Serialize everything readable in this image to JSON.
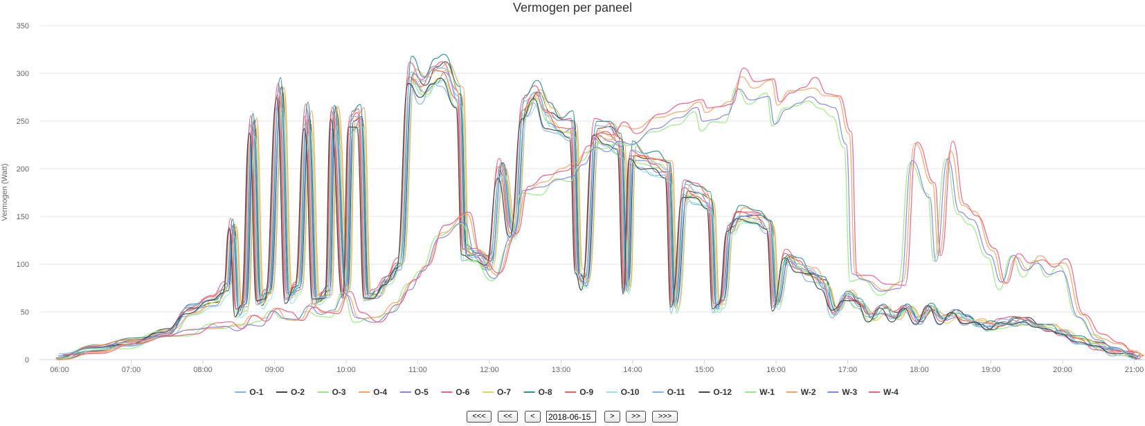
{
  "chart_data": {
    "type": "line",
    "title": "Vermogen per paneel",
    "ylabel": "Vermogen (Watt)",
    "xlabel": "",
    "ylim": [
      0,
      350
    ],
    "yticks": [
      0,
      50,
      100,
      150,
      200,
      250,
      300,
      350
    ],
    "xticks": [
      "06:00",
      "07:00",
      "08:00",
      "09:00",
      "10:00",
      "11:00",
      "12:00",
      "13:00",
      "14:00",
      "15:00",
      "16:00",
      "17:00",
      "18:00",
      "19:00",
      "20:00",
      "21:00"
    ],
    "grid": "horizontal",
    "legend": "bottom",
    "series": [
      {
        "name": "O-1",
        "color": "#7cb5ec"
      },
      {
        "name": "O-2",
        "color": "#434348"
      },
      {
        "name": "O-3",
        "color": "#90ed7d"
      },
      {
        "name": "O-4",
        "color": "#f7a35c"
      },
      {
        "name": "O-5",
        "color": "#8085e9"
      },
      {
        "name": "O-6",
        "color": "#f15c80"
      },
      {
        "name": "O-7",
        "color": "#e4d354"
      },
      {
        "name": "O-8",
        "color": "#2b908f"
      },
      {
        "name": "O-9",
        "color": "#f45b5b"
      },
      {
        "name": "O-10",
        "color": "#91e8e1"
      },
      {
        "name": "O-11",
        "color": "#7cb5ec"
      },
      {
        "name": "O-12",
        "color": "#434348"
      },
      {
        "name": "W-1",
        "color": "#90ed7d"
      },
      {
        "name": "W-2",
        "color": "#f7a35c"
      },
      {
        "name": "W-3",
        "color": "#8085e9"
      },
      {
        "name": "W-4",
        "color": "#f15c80"
      }
    ],
    "profiles": {
      "east_sun": [
        [
          "06:00",
          2
        ],
        [
          "06:30",
          12
        ],
        [
          "07:00",
          18
        ],
        [
          "07:30",
          28
        ],
        [
          "07:50",
          52
        ],
        [
          "08:10",
          62
        ],
        [
          "08:20",
          75
        ],
        [
          "08:25",
          140
        ],
        [
          "08:30",
          50
        ],
        [
          "08:35",
          55
        ],
        [
          "08:42",
          250
        ],
        [
          "08:48",
          60
        ],
        [
          "08:55",
          70
        ],
        [
          "09:05",
          280
        ],
        [
          "09:12",
          65
        ],
        [
          "09:20",
          75
        ],
        [
          "09:28",
          255
        ],
        [
          "09:35",
          62
        ],
        [
          "09:45",
          70
        ],
        [
          "09:50",
          258
        ],
        [
          "10:00",
          70
        ],
        [
          "10:05",
          250
        ],
        [
          "10:12",
          255
        ],
        [
          "10:18",
          65
        ],
        [
          "10:25",
          68
        ],
        [
          "10:35",
          80
        ],
        [
          "10:45",
          100
        ],
        [
          "10:55",
          300
        ],
        [
          "11:05",
          285
        ],
        [
          "11:15",
          300
        ],
        [
          "11:22",
          305
        ],
        [
          "11:35",
          275
        ],
        [
          "11:40",
          112
        ],
        [
          "11:50",
          110
        ],
        [
          "12:00",
          100
        ],
        [
          "12:10",
          200
        ],
        [
          "12:20",
          130
        ],
        [
          "12:30",
          265
        ],
        [
          "12:40",
          280
        ],
        [
          "12:50",
          255
        ],
        [
          "13:00",
          245
        ],
        [
          "13:10",
          245
        ],
        [
          "13:15",
          90
        ],
        [
          "13:20",
          80
        ],
        [
          "13:30",
          240
        ],
        [
          "13:40",
          238
        ],
        [
          "13:50",
          225
        ],
        [
          "13:55",
          75
        ],
        [
          "14:00",
          215
        ],
        [
          "14:10",
          210
        ],
        [
          "14:20",
          205
        ],
        [
          "14:30",
          200
        ],
        [
          "14:35",
          55
        ],
        [
          "14:45",
          178
        ],
        [
          "14:55",
          175
        ],
        [
          "15:05",
          165
        ],
        [
          "15:10",
          55
        ],
        [
          "15:15",
          60
        ],
        [
          "15:22",
          140
        ],
        [
          "15:30",
          152
        ],
        [
          "15:45",
          150
        ],
        [
          "15:55",
          140
        ],
        [
          "16:00",
          55
        ],
        [
          "16:10",
          108
        ],
        [
          "16:20",
          98
        ],
        [
          "16:30",
          90
        ],
        [
          "16:40",
          80
        ],
        [
          "16:50",
          50
        ],
        [
          "17:00",
          68
        ],
        [
          "17:10",
          60
        ],
        [
          "17:20",
          45
        ],
        [
          "17:30",
          52
        ],
        [
          "17:40",
          45
        ],
        [
          "17:50",
          52
        ],
        [
          "18:00",
          42
        ],
        [
          "18:10",
          55
        ],
        [
          "18:20",
          42
        ],
        [
          "18:30",
          48
        ],
        [
          "18:40",
          42
        ],
        [
          "18:50",
          38
        ],
        [
          "19:00",
          35
        ],
        [
          "19:10",
          38
        ],
        [
          "19:20",
          40
        ],
        [
          "19:30",
          40
        ],
        [
          "19:40",
          36
        ],
        [
          "19:50",
          33
        ],
        [
          "20:00",
          28
        ],
        [
          "20:15",
          20
        ],
        [
          "20:30",
          14
        ],
        [
          "20:45",
          8
        ],
        [
          "21:00",
          5
        ],
        [
          "21:05",
          3
        ]
      ],
      "west_sun": [
        [
          "06:00",
          2
        ],
        [
          "06:30",
          10
        ],
        [
          "07:00",
          15
        ],
        [
          "07:30",
          22
        ],
        [
          "07:50",
          30
        ],
        [
          "08:10",
          35
        ],
        [
          "08:20",
          38
        ],
        [
          "08:30",
          35
        ],
        [
          "08:40",
          42
        ],
        [
          "08:50",
          40
        ],
        [
          "09:00",
          55
        ],
        [
          "09:10",
          45
        ],
        [
          "09:20",
          42
        ],
        [
          "09:30",
          55
        ],
        [
          "09:40",
          45
        ],
        [
          "09:50",
          50
        ],
        [
          "10:00",
          70
        ],
        [
          "10:10",
          45
        ],
        [
          "10:25",
          42
        ],
        [
          "10:40",
          55
        ],
        [
          "10:55",
          80
        ],
        [
          "11:05",
          100
        ],
        [
          "11:20",
          135
        ],
        [
          "11:40",
          150
        ],
        [
          "11:50",
          110
        ],
        [
          "12:05",
          85
        ],
        [
          "12:20",
          130
        ],
        [
          "12:30",
          180
        ],
        [
          "12:45",
          185
        ],
        [
          "13:00",
          195
        ],
        [
          "13:10",
          200
        ],
        [
          "13:20",
          215
        ],
        [
          "13:30",
          235
        ],
        [
          "13:40",
          230
        ],
        [
          "13:50",
          240
        ],
        [
          "14:00",
          235
        ],
        [
          "14:20",
          250
        ],
        [
          "14:40",
          260
        ],
        [
          "14:55",
          270
        ],
        [
          "15:00",
          255
        ],
        [
          "15:10",
          258
        ],
        [
          "15:20",
          265
        ],
        [
          "15:30",
          295
        ],
        [
          "15:40",
          285
        ],
        [
          "15:55",
          290
        ],
        [
          "16:00",
          260
        ],
        [
          "16:10",
          275
        ],
        [
          "16:20",
          280
        ],
        [
          "16:30",
          285
        ],
        [
          "16:40",
          275
        ],
        [
          "16:50",
          270
        ],
        [
          "17:00",
          230
        ],
        [
          "17:05",
          90
        ],
        [
          "17:15",
          85
        ],
        [
          "17:30",
          75
        ],
        [
          "17:45",
          80
        ],
        [
          "17:55",
          220
        ],
        [
          "18:10",
          180
        ],
        [
          "18:15",
          110
        ],
        [
          "18:25",
          220
        ],
        [
          "18:35",
          160
        ],
        [
          "18:45",
          150
        ],
        [
          "19:00",
          110
        ],
        [
          "19:10",
          80
        ],
        [
          "19:20",
          110
        ],
        [
          "19:30",
          95
        ],
        [
          "19:40",
          105
        ],
        [
          "19:50",
          95
        ],
        [
          "20:00",
          100
        ],
        [
          "20:15",
          50
        ],
        [
          "20:30",
          25
        ],
        [
          "20:45",
          15
        ],
        [
          "21:00",
          5
        ],
        [
          "21:05",
          2
        ]
      ]
    }
  },
  "navigation": {
    "first": "<<<",
    "prev_week": "<<",
    "prev_day": "<",
    "date": "2018-06-15",
    "next_day": ">",
    "next_week": ">>",
    "last": ">>>"
  }
}
